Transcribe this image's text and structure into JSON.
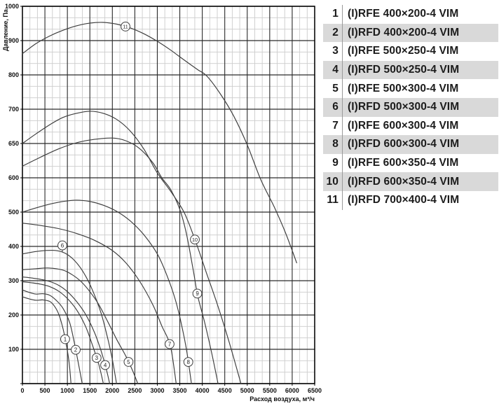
{
  "legend": {
    "stripe_color": "#d9d9d9",
    "rows": [
      {
        "num": "1",
        "label": "(I)RFE 400×200-4 VIM"
      },
      {
        "num": "2",
        "label": "(I)RFD 400×200-4 VIM"
      },
      {
        "num": "3",
        "label": "(I)RFE 500×250-4 VIM"
      },
      {
        "num": "4",
        "label": "(I)RFD 500×250-4 VIM"
      },
      {
        "num": "5",
        "label": "(I)RFE 500×300-4 VIM"
      },
      {
        "num": "6",
        "label": "(I)RFD 500×300-4 VIM"
      },
      {
        "num": "7",
        "label": "(I)RFE 600×300-4 VIM"
      },
      {
        "num": "8",
        "label": "(I)RFD 600×300-4 VIM"
      },
      {
        "num": "9",
        "label": "(I)RFE 600×350-4 VIM"
      },
      {
        "num": "10",
        "label": "(I)RFD 600×350-4 VIM"
      },
      {
        "num": "11",
        "label": "(I)RFD 700×400-4 VIM"
      }
    ]
  },
  "chart_data": {
    "type": "line",
    "title": "",
    "xlabel": "Расход воздуха, м³/ч",
    "ylabel": "Давление, Па",
    "x_ticks": [
      0,
      500,
      1000,
      1500,
      2000,
      2500,
      3000,
      3500,
      4000,
      4500,
      5000,
      5500,
      6000,
      6500
    ],
    "y_ticks": [
      0,
      100,
      200,
      300,
      400,
      500,
      600,
      650,
      700,
      800,
      900,
      1000
    ],
    "y_axis_note": "non-linear: 50-Pa steps between 600 and 700, 100-Pa steps elsewhere",
    "xlim": [
      0,
      6500
    ],
    "grid": {
      "major_color": "#2a2a2a",
      "minor_color": "#cccccc",
      "border_color": "#000000",
      "minor_per_major": 3
    },
    "curve_color": "#3d3d3d",
    "series": [
      {
        "num": "1",
        "name": "(I)RFE 400×200-4 VIM",
        "label_flow": 950,
        "points": [
          [
            0,
            253
          ],
          [
            150,
            247
          ],
          [
            300,
            243
          ],
          [
            450,
            244
          ],
          [
            600,
            240
          ],
          [
            700,
            228
          ],
          [
            800,
            205
          ],
          [
            900,
            162
          ],
          [
            980,
            110
          ],
          [
            1040,
            60
          ],
          [
            1080,
            0
          ]
        ]
      },
      {
        "num": "2",
        "name": "(I)RFD 400×200-4 VIM",
        "label_flow": 1185,
        "points": [
          [
            0,
            273
          ],
          [
            150,
            266
          ],
          [
            300,
            261
          ],
          [
            450,
            262
          ],
          [
            600,
            258
          ],
          [
            750,
            243
          ],
          [
            900,
            220
          ],
          [
            1050,
            178
          ],
          [
            1150,
            122
          ],
          [
            1250,
            55
          ],
          [
            1330,
            0
          ]
        ]
      },
      {
        "num": "3",
        "name": "(I)RFE 500×250-4 VIM",
        "label_flow": 1650,
        "points": [
          [
            0,
            297
          ],
          [
            200,
            294
          ],
          [
            400,
            290
          ],
          [
            600,
            283
          ],
          [
            800,
            270
          ],
          [
            1000,
            248
          ],
          [
            1200,
            216
          ],
          [
            1400,
            168
          ],
          [
            1550,
            115
          ],
          [
            1700,
            55
          ],
          [
            1800,
            0
          ]
        ]
      },
      {
        "num": "4",
        "name": "(I)RFD 500×250-4 VIM",
        "label_flow": 1840,
        "points": [
          [
            0,
            311
          ],
          [
            200,
            308
          ],
          [
            400,
            304
          ],
          [
            600,
            298
          ],
          [
            800,
            287
          ],
          [
            1000,
            268
          ],
          [
            1200,
            240
          ],
          [
            1400,
            203
          ],
          [
            1600,
            150
          ],
          [
            1750,
            95
          ],
          [
            1860,
            45
          ],
          [
            1940,
            0
          ]
        ]
      },
      {
        "num": "5",
        "name": "(I)RFE 500×300-4 VIM",
        "label_flow": 2360,
        "points": [
          [
            0,
            332
          ],
          [
            300,
            335
          ],
          [
            600,
            337
          ],
          [
            900,
            331
          ],
          [
            1100,
            318
          ],
          [
            1300,
            298
          ],
          [
            1500,
            268
          ],
          [
            1700,
            230
          ],
          [
            1900,
            180
          ],
          [
            2100,
            128
          ],
          [
            2300,
            80
          ],
          [
            2450,
            38
          ],
          [
            2565,
            0
          ]
        ]
      },
      {
        "num": "6",
        "name": "(I)RFD 500×300-4 VIM",
        "label_flow": 888,
        "label_dy": -10,
        "leader": true,
        "points": [
          [
            0,
            378
          ],
          [
            250,
            384
          ],
          [
            500,
            388
          ],
          [
            750,
            388
          ],
          [
            950,
            380
          ],
          [
            1150,
            360
          ],
          [
            1350,
            326
          ],
          [
            1550,
            275
          ],
          [
            1750,
            205
          ],
          [
            1900,
            130
          ],
          [
            2000,
            70
          ],
          [
            2094,
            0
          ]
        ]
      },
      {
        "num": "7",
        "name": "(I)RFE 600×300-4 VIM",
        "label_flow": 3273,
        "points": [
          [
            0,
            468
          ],
          [
            400,
            461
          ],
          [
            800,
            452
          ],
          [
            1200,
            438
          ],
          [
            1600,
            418
          ],
          [
            2000,
            388
          ],
          [
            2300,
            352
          ],
          [
            2600,
            300
          ],
          [
            2900,
            230
          ],
          [
            3100,
            168
          ],
          [
            3290,
            110
          ],
          [
            3420,
            0
          ]
        ]
      },
      {
        "num": "8",
        "name": "(I)RFD 600×300-4 VIM",
        "label_flow": 3690,
        "points": [
          [
            0,
            500
          ],
          [
            300,
            512
          ],
          [
            600,
            523
          ],
          [
            900,
            531
          ],
          [
            1200,
            535
          ],
          [
            1500,
            531
          ],
          [
            1800,
            520
          ],
          [
            2100,
            502
          ],
          [
            2400,
            474
          ],
          [
            2700,
            434
          ],
          [
            3000,
            378
          ],
          [
            3200,
            320
          ],
          [
            3400,
            245
          ],
          [
            3550,
            165
          ],
          [
            3660,
            90
          ],
          [
            3760,
            0
          ]
        ]
      },
      {
        "num": "9",
        "name": "(I)RFE 600×350-4 VIM",
        "label_flow": 3890,
        "points": [
          [
            0,
            617
          ],
          [
            400,
            630
          ],
          [
            800,
            642
          ],
          [
            1200,
            651
          ],
          [
            1600,
            656
          ],
          [
            2000,
            658
          ],
          [
            2300,
            654
          ],
          [
            2600,
            643
          ],
          [
            2900,
            622
          ],
          [
            3100,
            600
          ],
          [
            3300,
            565
          ],
          [
            3500,
            508
          ],
          [
            3650,
            435
          ],
          [
            3800,
            330
          ],
          [
            3900,
            255
          ],
          [
            4050,
            180
          ],
          [
            4200,
            95
          ],
          [
            4350,
            0
          ]
        ]
      },
      {
        "num": "10",
        "name": "(I)RFD 600×350-4 VIM",
        "label_flow": 3835,
        "points": [
          [
            0,
            650
          ],
          [
            300,
            664
          ],
          [
            600,
            677
          ],
          [
            900,
            688
          ],
          [
            1200,
            694
          ],
          [
            1500,
            697
          ],
          [
            1800,
            694
          ],
          [
            2100,
            685
          ],
          [
            2400,
            668
          ],
          [
            2700,
            642
          ],
          [
            3000,
            607
          ],
          [
            3300,
            560
          ],
          [
            3600,
            498
          ],
          [
            3850,
            415
          ],
          [
            4100,
            320
          ],
          [
            4350,
            225
          ],
          [
            4600,
            120
          ],
          [
            4860,
            0
          ]
        ]
      },
      {
        "num": "11",
        "name": "(I)RFD 700×400-4 VIM",
        "label_flow": 2292,
        "points": [
          [
            0,
            862
          ],
          [
            300,
            891
          ],
          [
            600,
            913
          ],
          [
            900,
            930
          ],
          [
            1200,
            943
          ],
          [
            1500,
            951
          ],
          [
            1800,
            953
          ],
          [
            2100,
            948
          ],
          [
            2400,
            937
          ],
          [
            2700,
            920
          ],
          [
            3000,
            898
          ],
          [
            3300,
            872
          ],
          [
            3600,
            843
          ],
          [
            3900,
            815
          ],
          [
            4100,
            797
          ],
          [
            4400,
            745
          ],
          [
            4700,
            690
          ],
          [
            5000,
            648
          ],
          [
            5300,
            595
          ],
          [
            5600,
            515
          ],
          [
            5850,
            440
          ],
          [
            6100,
            352
          ]
        ]
      }
    ]
  }
}
